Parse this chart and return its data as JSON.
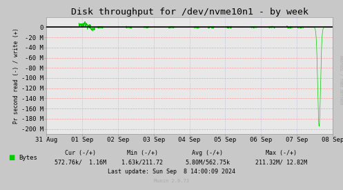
{
  "title": "Disk throughput for /dev/nvme10n1 - by week",
  "ylabel": "Pr second read (-) / write (+)",
  "background_color": "#c8c8c8",
  "plot_bg_color": "#e8e8e8",
  "grid_color_h": "#ff9999",
  "grid_color_v": "#aaaacc",
  "line_color": "#00cc00",
  "x_tick_labels": [
    "31 Aug",
    "01 Sep",
    "02 Sep",
    "03 Sep",
    "04 Sep",
    "05 Sep",
    "06 Sep",
    "07 Sep",
    "08 Sep"
  ],
  "x_tick_positions": [
    0,
    1,
    2,
    3,
    4,
    5,
    6,
    7,
    8
  ],
  "ylim": [
    -210000000,
    20000000
  ],
  "yticks": [
    0,
    -20000000,
    -40000000,
    -60000000,
    -80000000,
    -100000000,
    -120000000,
    -140000000,
    -160000000,
    -180000000,
    -200000000
  ],
  "ytick_labels": [
    "0",
    "-20 M",
    "-40 M",
    "-60 M",
    "-80 M",
    "-100 M",
    "-120 M",
    "-140 M",
    "-160 M",
    "-180 M",
    "-200 M"
  ],
  "legend_label": "Bytes",
  "cur_label": "Cur (-/+)",
  "cur_val": "572.76k/  1.16M",
  "min_label": "Min (-/+)",
  "min_val": "1.63k/211.72",
  "avg_label": "Avg (-/+)",
  "avg_val": "5.80M/562.75k",
  "max_label": "Max (-/+)",
  "max_val": "211.32M/ 12.82M",
  "last_update": "Last update: Sun Sep  8 14:00:09 2024",
  "munin_version": "Munin 2.0.73",
  "rrdtool_label": "RRDTOOL / TOBI OETIKER",
  "title_fontsize": 9.5,
  "axis_fontsize": 6.5,
  "legend_fontsize": 6.5,
  "bottom_fontsize": 6.0,
  "zero_line_color": "#000000"
}
